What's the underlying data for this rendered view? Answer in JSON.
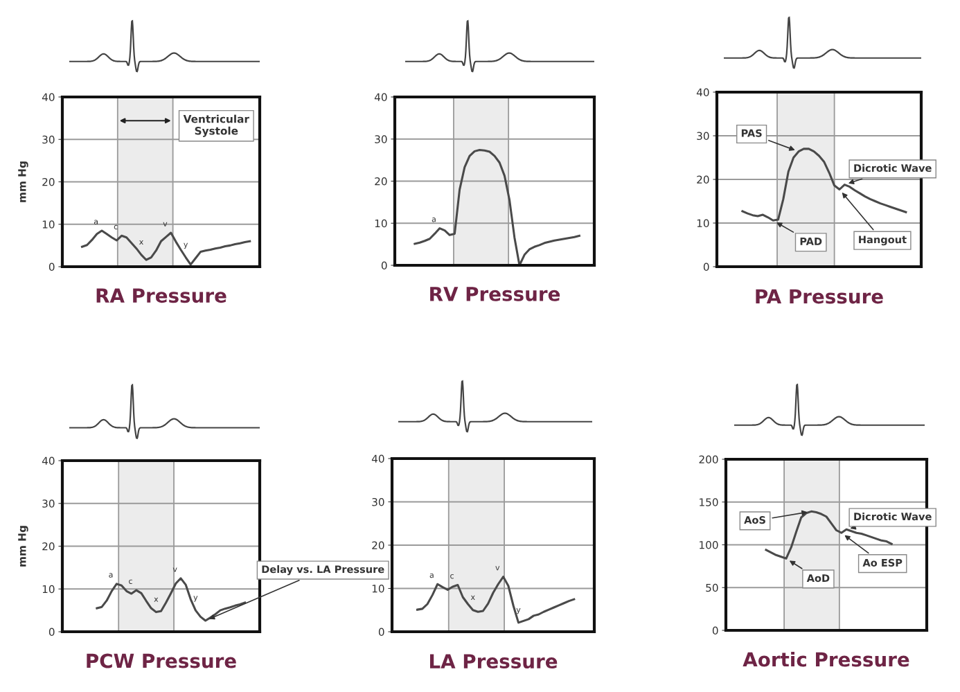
{
  "chart_data": [
    {
      "type": "line",
      "title": "RA Pressure",
      "ylabel": "mm Hg",
      "color": "#4a4a4a",
      "categories": [
        null,
        null,
        null,
        null,
        null,
        null,
        null,
        null,
        null,
        null,
        null,
        null,
        null,
        null,
        null,
        null,
        null,
        null,
        null,
        null,
        null,
        null,
        null,
        null,
        null,
        null,
        null,
        null,
        null,
        null,
        null,
        null,
        null,
        null,
        null,
        null,
        null,
        null,
        null,
        null,
        null
      ],
      "values": [
        null,
        null,
        null,
        null,
        4.7,
        5.1,
        6.3,
        7.7,
        8.5,
        7.7,
        6.9,
        6.2,
        7.3,
        6.9,
        5.6,
        4.3,
        2.8,
        1.6,
        2.2,
        3.8,
        6,
        7,
        8,
        5.9,
        4,
        2.2,
        0.5,
        2,
        3.5,
        3.8,
        4,
        4.3,
        4.5,
        4.8,
        5,
        5.3,
        5.5,
        5.8,
        6,
        null,
        null
      ],
      "ylim": [
        0,
        40
      ],
      "yticks": [
        0,
        10,
        20,
        30,
        40
      ],
      "grid": "y",
      "tick_labels": "y",
      "annotations": [
        "Ventricular\nSystole",
        "a",
        "c",
        "x",
        "v",
        "y"
      ]
    },
    {
      "type": "line",
      "title": "RV Pressure",
      "color": "#4a4a4a",
      "categories": [
        null,
        null,
        null,
        null,
        null,
        null,
        null,
        null,
        null,
        null,
        null,
        null,
        null,
        null,
        null,
        null,
        null,
        null,
        null,
        null,
        null,
        null,
        null,
        null,
        null,
        null,
        null,
        null,
        null,
        null,
        null,
        null,
        null,
        null,
        null,
        null,
        null,
        null,
        null,
        null,
        null
      ],
      "values": [
        null,
        null,
        null,
        null,
        5.1,
        5.4,
        5.8,
        6.3,
        7.5,
        8.8,
        8.3,
        7.2,
        7.5,
        18,
        23.3,
        26,
        27.1,
        27.4,
        27.3,
        27,
        26,
        24.4,
        21.3,
        15.5,
        6.6,
        0,
        2.5,
        3.8,
        4.4,
        4.8,
        5.3,
        5.6,
        5.9,
        6.1,
        6.3,
        6.5,
        6.7,
        7,
        null,
        null,
        null
      ],
      "ylim": [
        0,
        40
      ],
      "yticks": [
        0,
        10,
        20,
        30,
        40
      ],
      "grid": "y",
      "tick_labels": "y",
      "annotations": [
        "a"
      ]
    },
    {
      "type": "line",
      "title": "PA Pressure",
      "color": "#4a4a4a",
      "categories": [
        null,
        null,
        null,
        null,
        null,
        null,
        null,
        null,
        null,
        null,
        null,
        null,
        null,
        null,
        null,
        null,
        null,
        null,
        null,
        null,
        null,
        null,
        null,
        null,
        null,
        null,
        null,
        null,
        null,
        null,
        null,
        null,
        null,
        null,
        null,
        null,
        null,
        null,
        null,
        null,
        null
      ],
      "values": [
        null,
        null,
        null,
        null,
        null,
        12.7,
        12.2,
        11.8,
        11.6,
        11.9,
        11.3,
        10.6,
        10.8,
        15.5,
        21.8,
        25,
        26.4,
        27,
        27,
        26.4,
        25.4,
        24,
        21.5,
        18.6,
        17.7,
        18.8,
        18.3,
        17.5,
        16.8,
        16.1,
        15.5,
        15,
        14.5,
        14.1,
        13.7,
        13.3,
        12.9,
        12.5,
        null,
        null,
        null
      ],
      "ylim": [
        0,
        40
      ],
      "yticks": [
        0,
        10,
        20,
        30,
        40
      ],
      "grid": "y",
      "tick_labels": "y",
      "annotations": [
        "PAS",
        "Dicrotic Wave",
        "PAD",
        "Hangout"
      ]
    },
    {
      "type": "line",
      "title": "PCW Pressure",
      "ylabel": "mm Hg",
      "color": "#4a4a4a",
      "categories": [
        null,
        null,
        null,
        null,
        null,
        null,
        null,
        null,
        null,
        null,
        null,
        null,
        null,
        null,
        null,
        null,
        null,
        null,
        null,
        null,
        null,
        null,
        null,
        null,
        null,
        null,
        null,
        null,
        null,
        null,
        null,
        null,
        null,
        null,
        null,
        null,
        null,
        null,
        null,
        null,
        null
      ],
      "values": [
        null,
        null,
        null,
        null,
        null,
        null,
        null,
        5.5,
        5.8,
        7.3,
        9.5,
        11.2,
        10.8,
        9.5,
        8.9,
        9.7,
        9,
        7.2,
        5.5,
        4.6,
        4.8,
        6.8,
        9,
        11.3,
        12.5,
        11,
        7.6,
        5,
        3.5,
        2.6,
        3.3,
        4.1,
        5,
        5.4,
        5.7,
        6.1,
        6.4,
        6.8,
        null,
        null,
        null
      ],
      "ylim": [
        0,
        40
      ],
      "yticks": [
        0,
        10,
        20,
        30,
        40
      ],
      "grid": "y",
      "tick_labels": "y",
      "annotations": [
        "a",
        "c",
        "x",
        "v",
        "y",
        "Delay vs. LA Pressure"
      ]
    },
    {
      "type": "line",
      "title": "LA Pressure",
      "color": "#4a4a4a",
      "categories": [
        null,
        null,
        null,
        null,
        null,
        null,
        null,
        null,
        null,
        null,
        null,
        null,
        null,
        null,
        null,
        null,
        null,
        null,
        null,
        null,
        null,
        null,
        null,
        null,
        null,
        null,
        null,
        null,
        null,
        null,
        null,
        null,
        null,
        null,
        null,
        null,
        null,
        null,
        null,
        null,
        null
      ],
      "values": [
        null,
        null,
        null,
        null,
        null,
        5.1,
        5.3,
        6.4,
        8.5,
        11,
        10.3,
        9.7,
        10.4,
        10.8,
        8,
        6.4,
        5,
        4.6,
        4.8,
        6.5,
        9,
        11,
        12.7,
        10.6,
        6,
        2.1,
        2.5,
        2.9,
        3.7,
        4,
        4.6,
        5.1,
        5.6,
        6.1,
        6.6,
        7.1,
        7.5,
        null,
        null,
        null,
        null
      ],
      "ylim": [
        0,
        40
      ],
      "yticks": [
        0,
        10,
        20,
        30,
        40
      ],
      "grid": "y",
      "tick_labels": "y",
      "annotations": [
        "a",
        "c",
        "x",
        "v",
        "y"
      ]
    },
    {
      "type": "line",
      "title": "Aortic Pressure",
      "color": "#4a4a4a",
      "categories": [
        null,
        null,
        null,
        null,
        null,
        null,
        null,
        null,
        null,
        null,
        null,
        null,
        null,
        null,
        null,
        null,
        null,
        null,
        null,
        null,
        null,
        null,
        null,
        null,
        null,
        null,
        null,
        null,
        null,
        null,
        null,
        null,
        null,
        null,
        null,
        null,
        null,
        null,
        null,
        null,
        null
      ],
      "values": [
        null,
        null,
        null,
        null,
        null,
        null,
        null,
        null,
        94,
        91,
        88,
        86,
        84,
        97,
        115,
        132,
        137,
        139,
        138,
        136,
        133,
        125,
        117,
        114,
        118,
        116,
        114,
        113,
        111,
        109,
        107,
        105,
        104,
        101,
        null,
        null,
        null,
        null,
        null,
        null,
        null
      ],
      "ylim": [
        0,
        200
      ],
      "yticks": [
        0,
        50,
        100,
        150,
        200
      ],
      "grid": "y",
      "tick_labels": "y",
      "annotations": [
        "AoS",
        "Dicrotic Wave",
        "AoD",
        "Ao ESP"
      ]
    }
  ]
}
